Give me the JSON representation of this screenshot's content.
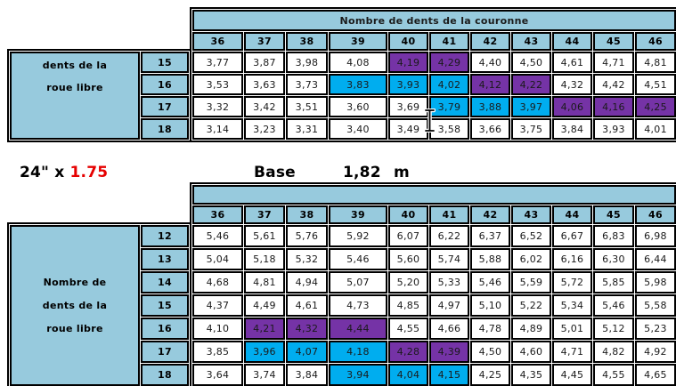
{
  "colors": {
    "band_fill": "#97CADD",
    "highlight_blue": "#00ADEF",
    "highlight_purple": "#7533A6",
    "wheel_red": "#e60000"
  },
  "middle": {
    "wheel_black": "24\" x ",
    "wheel_red": "1.75",
    "base_label": "Base",
    "base_value": "1,82",
    "base_unit": "m"
  },
  "top_table": {
    "title": "Nombre de dents de la couronne",
    "side_label_lines": [
      "dents de la",
      "roue libre"
    ],
    "columns": [
      "36",
      "37",
      "38",
      "39",
      "40",
      "41",
      "42",
      "43",
      "44",
      "45",
      "46"
    ],
    "rows": [
      {
        "label": "15",
        "values": [
          "3,77",
          "3,87",
          "3,98",
          "4,08",
          "4,19",
          "4,29",
          "4,40",
          "4,50",
          "4,61",
          "4,71",
          "4,81"
        ],
        "fills": [
          "w",
          "w",
          "w",
          "w",
          "p",
          "p",
          "w",
          "w",
          "w",
          "w",
          "w"
        ]
      },
      {
        "label": "16",
        "values": [
          "3,53",
          "3,63",
          "3,73",
          "3,83",
          "3,93",
          "4,02",
          "4,12",
          "4,22",
          "4,32",
          "4,42",
          "4,51"
        ],
        "fills": [
          "w",
          "w",
          "w",
          "b",
          "b",
          "b",
          "p",
          "p",
          "w",
          "w",
          "w"
        ]
      },
      {
        "label": "17",
        "values": [
          "3,32",
          "3,42",
          "3,51",
          "3,60",
          "3,69",
          "3,79",
          "3,88",
          "3,97",
          "4,06",
          "4,16",
          "4,25"
        ],
        "fills": [
          "w",
          "w",
          "w",
          "w",
          "w",
          "b",
          "b",
          "b",
          "p",
          "p",
          "p"
        ]
      },
      {
        "label": "18",
        "values": [
          "3,14",
          "3,23",
          "3,31",
          "3,40",
          "3,49",
          "3,58",
          "3,66",
          "3,75",
          "3,84",
          "3,93",
          "4,01"
        ],
        "fills": [
          "w",
          "w",
          "w",
          "w",
          "w",
          "w",
          "w",
          "w",
          "w",
          "w",
          "w"
        ]
      }
    ]
  },
  "bottom_table": {
    "title": "",
    "side_label_lines": [
      "Nombre de",
      "dents de la",
      "roue libre"
    ],
    "columns": [
      "36",
      "37",
      "38",
      "39",
      "40",
      "41",
      "42",
      "43",
      "44",
      "45",
      "46"
    ],
    "rows": [
      {
        "label": "12",
        "values": [
          "5,46",
          "5,61",
          "5,76",
          "5,92",
          "6,07",
          "6,22",
          "6,37",
          "6,52",
          "6,67",
          "6,83",
          "6,98"
        ],
        "fills": [
          "w",
          "w",
          "w",
          "w",
          "w",
          "w",
          "w",
          "w",
          "w",
          "w",
          "w"
        ]
      },
      {
        "label": "13",
        "values": [
          "5,04",
          "5,18",
          "5,32",
          "5,46",
          "5,60",
          "5,74",
          "5,88",
          "6,02",
          "6,16",
          "6,30",
          "6,44"
        ],
        "fills": [
          "w",
          "w",
          "w",
          "w",
          "w",
          "w",
          "w",
          "w",
          "w",
          "w",
          "w"
        ]
      },
      {
        "label": "14",
        "values": [
          "4,68",
          "4,81",
          "4,94",
          "5,07",
          "5,20",
          "5,33",
          "5,46",
          "5,59",
          "5,72",
          "5,85",
          "5,98"
        ],
        "fills": [
          "w",
          "w",
          "w",
          "w",
          "w",
          "w",
          "w",
          "w",
          "w",
          "w",
          "w"
        ]
      },
      {
        "label": "15",
        "values": [
          "4,37",
          "4,49",
          "4,61",
          "4,73",
          "4,85",
          "4,97",
          "5,10",
          "5,22",
          "5,34",
          "5,46",
          "5,58"
        ],
        "fills": [
          "w",
          "w",
          "w",
          "w",
          "w",
          "w",
          "w",
          "w",
          "w",
          "w",
          "w"
        ]
      },
      {
        "label": "16",
        "values": [
          "4,10",
          "4,21",
          "4,32",
          "4,44",
          "4,55",
          "4,66",
          "4,78",
          "4,89",
          "5,01",
          "5,12",
          "5,23"
        ],
        "fills": [
          "w",
          "p",
          "p",
          "p",
          "w",
          "w",
          "w",
          "w",
          "w",
          "w",
          "w"
        ]
      },
      {
        "label": "17",
        "values": [
          "3,85",
          "3,96",
          "4,07",
          "4,18",
          "4,28",
          "4,39",
          "4,50",
          "4,60",
          "4,71",
          "4,82",
          "4,92"
        ],
        "fills": [
          "w",
          "b",
          "b",
          "b",
          "p",
          "p",
          "w",
          "w",
          "w",
          "w",
          "w"
        ]
      },
      {
        "label": "18",
        "values": [
          "3,64",
          "3,74",
          "3,84",
          "3,94",
          "4,04",
          "4,15",
          "4,25",
          "4,35",
          "4,45",
          "4,55",
          "4,65"
        ],
        "fills": [
          "w",
          "w",
          "w",
          "b",
          "b",
          "b",
          "w",
          "w",
          "w",
          "w",
          "w"
        ]
      }
    ]
  }
}
